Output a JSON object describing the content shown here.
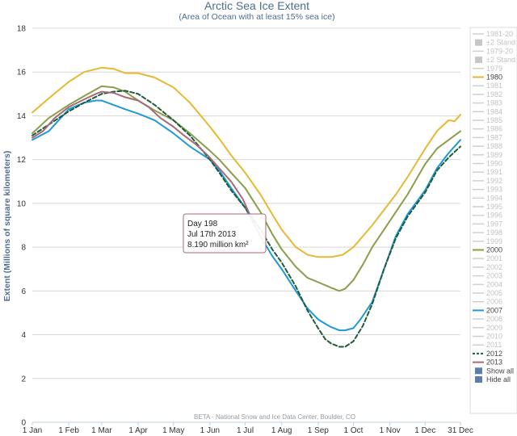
{
  "chart_data": {
    "type": "line",
    "title": "Arctic Sea Ice Extent",
    "subtitle": "(Area of Ocean with at least 15% sea ice)",
    "ylabel": "Extent (Millions of square kilometers)",
    "xlabel": "",
    "ylim": [
      0,
      18
    ],
    "xlim": [
      1,
      365
    ],
    "y_ticks": [
      "0",
      "2",
      "4",
      "6",
      "8",
      "10",
      "12",
      "14",
      "16",
      "18"
    ],
    "x_ticks": [
      {
        "label": "1 Jan",
        "day": 1
      },
      {
        "label": "1 Feb",
        "day": 32
      },
      {
        "label": "1 Mar",
        "day": 60
      },
      {
        "label": "1 Apr",
        "day": 91
      },
      {
        "label": "1 May",
        "day": 121
      },
      {
        "label": "1 Jun",
        "day": 152
      },
      {
        "label": "1 Jul",
        "day": 182
      },
      {
        "label": "1 Aug",
        "day": 213
      },
      {
        "label": "1 Sep",
        "day": 244
      },
      {
        "label": "1 Oct",
        "day": 274
      },
      {
        "label": "1 Nov",
        "day": 305
      },
      {
        "label": "1 Dec",
        "day": 335
      },
      {
        "label": "31 Dec",
        "day": 365
      }
    ],
    "grid": true,
    "credit": "BETA - National Snow and Ice Data Center, Boulder, CO",
    "series": [
      {
        "name": "1980",
        "color": "#e8b830",
        "dash": false,
        "x": [
          1,
          15,
          32,
          45,
          60,
          70,
          80,
          91,
          105,
          121,
          135,
          152,
          160,
          170,
          182,
          195,
          205,
          213,
          225,
          235,
          244,
          255,
          265,
          274,
          282,
          290,
          300,
          310,
          320,
          335,
          345,
          355,
          360,
          365
        ],
        "y": [
          14.15,
          14.8,
          15.55,
          16.0,
          16.2,
          16.15,
          15.95,
          15.95,
          15.75,
          15.3,
          14.6,
          13.5,
          12.95,
          12.2,
          11.4,
          10.4,
          9.5,
          8.8,
          8.0,
          7.65,
          7.55,
          7.55,
          7.65,
          8.0,
          8.5,
          9.0,
          9.7,
          10.4,
          11.2,
          12.5,
          13.3,
          13.8,
          13.75,
          14.05
        ]
      },
      {
        "name": "2000",
        "color": "#8a9e4a",
        "dash": false,
        "x": [
          1,
          15,
          32,
          45,
          60,
          70,
          80,
          91,
          105,
          121,
          135,
          152,
          160,
          170,
          182,
          195,
          205,
          213,
          225,
          235,
          244,
          255,
          262,
          267,
          274,
          282,
          290,
          300,
          310,
          320,
          335,
          345,
          355,
          365
        ],
        "y": [
          13.2,
          13.9,
          14.5,
          14.9,
          15.35,
          15.3,
          15.1,
          14.7,
          14.25,
          13.8,
          13.2,
          12.4,
          12.0,
          11.4,
          10.7,
          9.6,
          8.6,
          7.9,
          7.1,
          6.6,
          6.4,
          6.15,
          6.0,
          6.1,
          6.5,
          7.2,
          8.0,
          8.8,
          9.6,
          10.4,
          11.8,
          12.5,
          12.9,
          13.3
        ]
      },
      {
        "name": "2007",
        "color": "#1d9ad6",
        "dash": false,
        "x": [
          1,
          15,
          32,
          45,
          55,
          60,
          70,
          80,
          91,
          105,
          121,
          135,
          152,
          160,
          170,
          182,
          195,
          205,
          213,
          225,
          235,
          244,
          250,
          255,
          262,
          267,
          274,
          280,
          290,
          300,
          310,
          320,
          335,
          345,
          355,
          365
        ],
        "y": [
          12.9,
          13.3,
          14.3,
          14.6,
          14.7,
          14.7,
          14.5,
          14.3,
          14.1,
          13.8,
          13.2,
          12.6,
          12.0,
          11.5,
          10.7,
          9.8,
          8.5,
          7.6,
          7.0,
          6.0,
          5.2,
          4.7,
          4.5,
          4.35,
          4.2,
          4.2,
          4.3,
          4.7,
          5.5,
          7.0,
          8.5,
          9.5,
          10.6,
          11.6,
          12.3,
          12.9
        ]
      },
      {
        "name": "2012",
        "color": "#1f5c3a",
        "dash": true,
        "x": [
          1,
          15,
          32,
          45,
          60,
          70,
          80,
          91,
          105,
          121,
          135,
          152,
          160,
          170,
          182,
          195,
          205,
          213,
          225,
          235,
          244,
          250,
          255,
          262,
          267,
          274,
          282,
          290,
          300,
          310,
          320,
          335,
          345,
          355,
          365
        ],
        "y": [
          13.1,
          13.6,
          14.2,
          14.6,
          15.0,
          15.1,
          15.15,
          15.0,
          14.5,
          13.8,
          13.1,
          12.0,
          11.4,
          10.6,
          9.8,
          8.8,
          7.9,
          7.3,
          6.2,
          5.1,
          4.3,
          3.8,
          3.6,
          3.45,
          3.45,
          3.7,
          4.4,
          5.4,
          7.0,
          8.4,
          9.4,
          10.5,
          11.5,
          12.1,
          12.6
        ]
      },
      {
        "name": "2013",
        "color": "#a76a78",
        "dash": false,
        "x": [
          1,
          10,
          20,
          32,
          45,
          55,
          60,
          70,
          80,
          91,
          100,
          110,
          121,
          130,
          140,
          150,
          160,
          170,
          180,
          190,
          198
        ],
        "y": [
          13.0,
          13.3,
          13.9,
          14.4,
          14.75,
          15.0,
          15.1,
          15.05,
          14.85,
          14.7,
          14.4,
          13.9,
          13.5,
          13.1,
          12.7,
          12.2,
          11.6,
          11.0,
          10.2,
          9.0,
          8.19
        ]
      }
    ],
    "legend": {
      "placement": "right",
      "items": [
        {
          "label": "1981-20",
          "style": "line",
          "color": "#cfcfcf",
          "muted": true
        },
        {
          "label": "±2 Stand",
          "style": "box",
          "color": "#c7c7c7",
          "muted": true
        },
        {
          "label": "1979-20",
          "style": "line",
          "color": "#cfcfcf",
          "muted": true
        },
        {
          "label": "±2 Stand",
          "style": "box",
          "color": "#c7c7c7",
          "muted": true
        },
        {
          "label": "1979",
          "style": "line",
          "color": "#cfcfcf",
          "muted": true
        },
        {
          "label": "1980",
          "style": "line",
          "color": "#e8b830",
          "muted": false
        },
        {
          "label": "1981",
          "style": "line",
          "color": "#cfcfcf",
          "muted": true
        },
        {
          "label": "1982",
          "style": "line",
          "color": "#cfcfcf",
          "muted": true
        },
        {
          "label": "1983",
          "style": "line",
          "color": "#cfcfcf",
          "muted": true
        },
        {
          "label": "1984",
          "style": "line",
          "color": "#cfcfcf",
          "muted": true
        },
        {
          "label": "1985",
          "style": "line",
          "color": "#cfcfcf",
          "muted": true
        },
        {
          "label": "1986",
          "style": "line",
          "color": "#cfcfcf",
          "muted": true
        },
        {
          "label": "1987",
          "style": "line",
          "color": "#cfcfcf",
          "muted": true
        },
        {
          "label": "1988",
          "style": "line",
          "color": "#cfcfcf",
          "muted": true
        },
        {
          "label": "1989",
          "style": "line",
          "color": "#cfcfcf",
          "muted": true
        },
        {
          "label": "1990",
          "style": "line",
          "color": "#cfcfcf",
          "muted": true
        },
        {
          "label": "1991",
          "style": "line",
          "color": "#cfcfcf",
          "muted": true
        },
        {
          "label": "1992",
          "style": "line",
          "color": "#cfcfcf",
          "muted": true
        },
        {
          "label": "1993",
          "style": "line",
          "color": "#cfcfcf",
          "muted": true
        },
        {
          "label": "1994",
          "style": "line",
          "color": "#cfcfcf",
          "muted": true
        },
        {
          "label": "1995",
          "style": "line",
          "color": "#cfcfcf",
          "muted": true
        },
        {
          "label": "1996",
          "style": "line",
          "color": "#cfcfcf",
          "muted": true
        },
        {
          "label": "1997",
          "style": "line",
          "color": "#cfcfcf",
          "muted": true
        },
        {
          "label": "1998",
          "style": "line",
          "color": "#cfcfcf",
          "muted": true
        },
        {
          "label": "1999",
          "style": "line",
          "color": "#cfcfcf",
          "muted": true
        },
        {
          "label": "2000",
          "style": "line",
          "color": "#8a9e4a",
          "muted": false
        },
        {
          "label": "2001",
          "style": "line",
          "color": "#cfcfcf",
          "muted": true
        },
        {
          "label": "2002",
          "style": "line",
          "color": "#cfcfcf",
          "muted": true
        },
        {
          "label": "2003",
          "style": "line",
          "color": "#cfcfcf",
          "muted": true
        },
        {
          "label": "2004",
          "style": "line",
          "color": "#cfcfcf",
          "muted": true
        },
        {
          "label": "2005",
          "style": "line",
          "color": "#cfcfcf",
          "muted": true
        },
        {
          "label": "2006",
          "style": "line",
          "color": "#cfcfcf",
          "muted": true
        },
        {
          "label": "2007",
          "style": "line",
          "color": "#1d9ad6",
          "muted": false
        },
        {
          "label": "2008",
          "style": "line",
          "color": "#cfcfcf",
          "muted": true
        },
        {
          "label": "2009",
          "style": "line",
          "color": "#cfcfcf",
          "muted": true
        },
        {
          "label": "2010",
          "style": "line",
          "color": "#cfcfcf",
          "muted": true
        },
        {
          "label": "2011",
          "style": "line",
          "color": "#cfcfcf",
          "muted": true
        },
        {
          "label": "2012",
          "style": "dash",
          "color": "#1f5c3a",
          "muted": false
        },
        {
          "label": "2013",
          "style": "line",
          "color": "#a76a78",
          "muted": false
        },
        {
          "label": "Show all",
          "style": "button",
          "color": "#4d6d8f",
          "muted": false
        },
        {
          "label": "Hide all",
          "style": "button",
          "color": "#4d6d8f",
          "muted": false
        }
      ]
    },
    "tooltip": {
      "day": 198,
      "value": 8.19,
      "lines": [
        "Day 198",
        "Jul 17th 2013",
        "8.190 million km²"
      ]
    }
  }
}
